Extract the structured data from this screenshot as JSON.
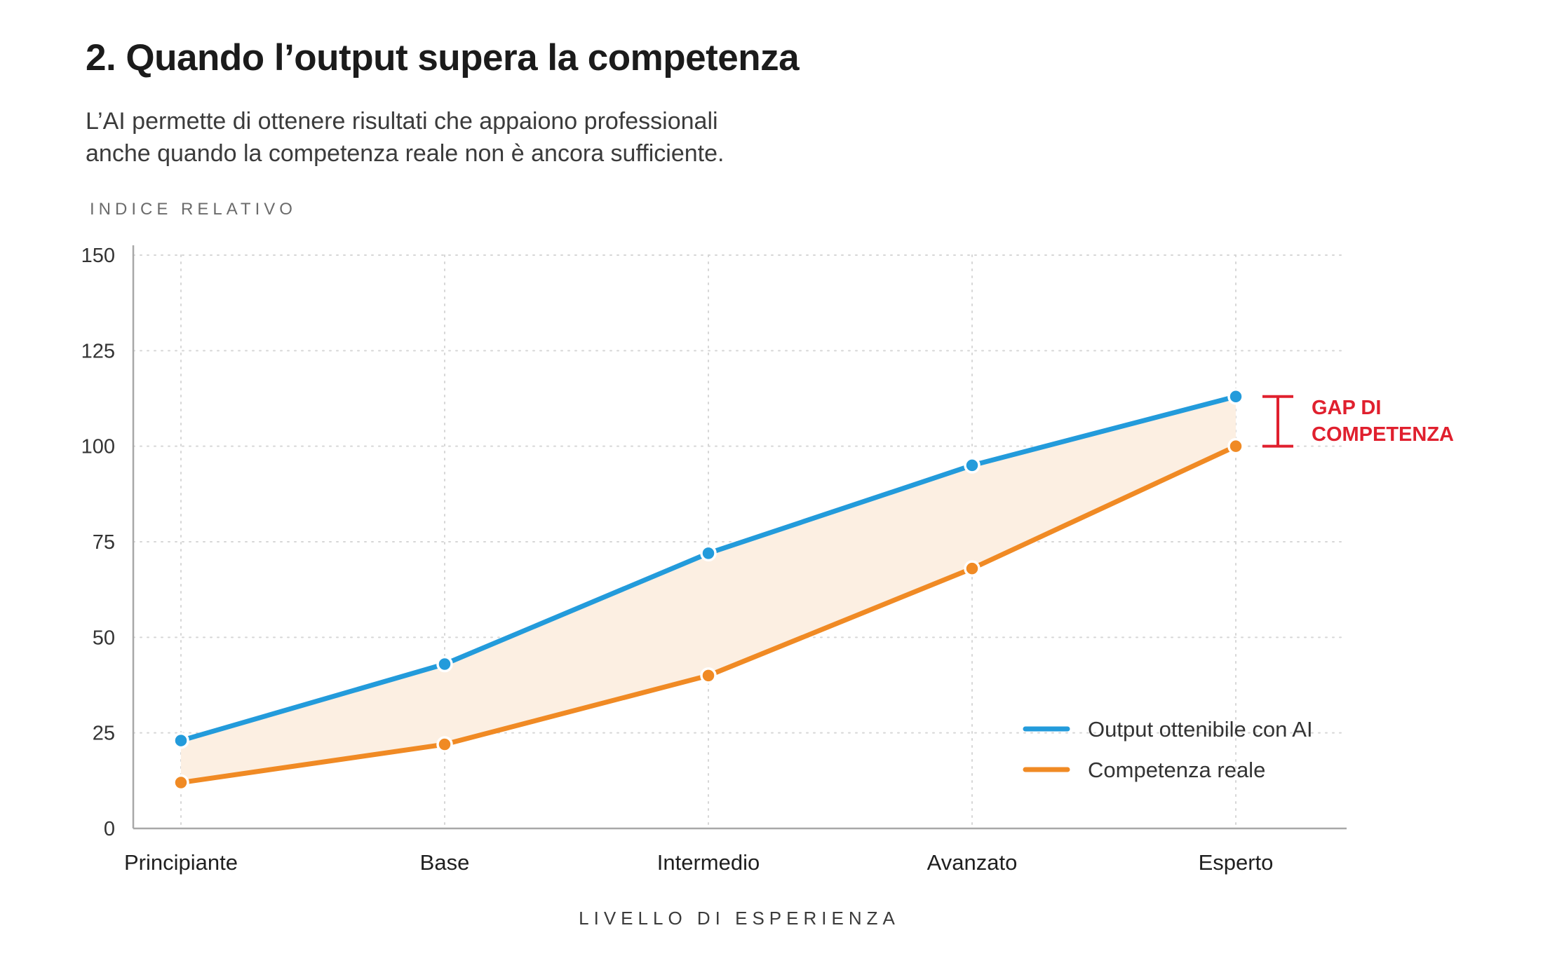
{
  "header": {
    "title": "2. Quando l’output supera la competenza",
    "subtitle_lines": [
      "L’AI permette di ottenere risultati che appaiono professionali",
      "anche quando la competenza reale non è ancora sufficiente."
    ]
  },
  "colors": {
    "output": "#239bdb",
    "competence": "#f08a24",
    "gap_fill": "#fcefe2",
    "gap_marker": "#e0202e",
    "axis": "#a8a8a8",
    "grid": "#d6d6d6"
  },
  "chart_data": {
    "type": "line",
    "title": "2. Quando l’output supera la competenza",
    "ylabel": "INDICE RELATIVO",
    "xlabel": "LIVELLO DI ESPERIENZA",
    "categories": [
      "Principiante",
      "Base",
      "Intermedio",
      "Avanzato",
      "Esperto"
    ],
    "series": [
      {
        "name": "Output ottenibile con AI",
        "values": [
          23,
          43,
          72,
          95,
          113
        ]
      },
      {
        "name": "Competenza reale",
        "values": [
          12,
          22,
          40,
          68,
          100
        ]
      }
    ],
    "ylim": [
      0,
      150
    ],
    "yticks": [
      0,
      25,
      50,
      75,
      100,
      125,
      150
    ],
    "grid": true,
    "fill_between": true,
    "legend_position": "bottom-right",
    "annotation": {
      "lines": [
        "GAP DI",
        "COMPETENZA"
      ],
      "category": "Esperto",
      "from_value": 100,
      "to_value": 113
    }
  }
}
